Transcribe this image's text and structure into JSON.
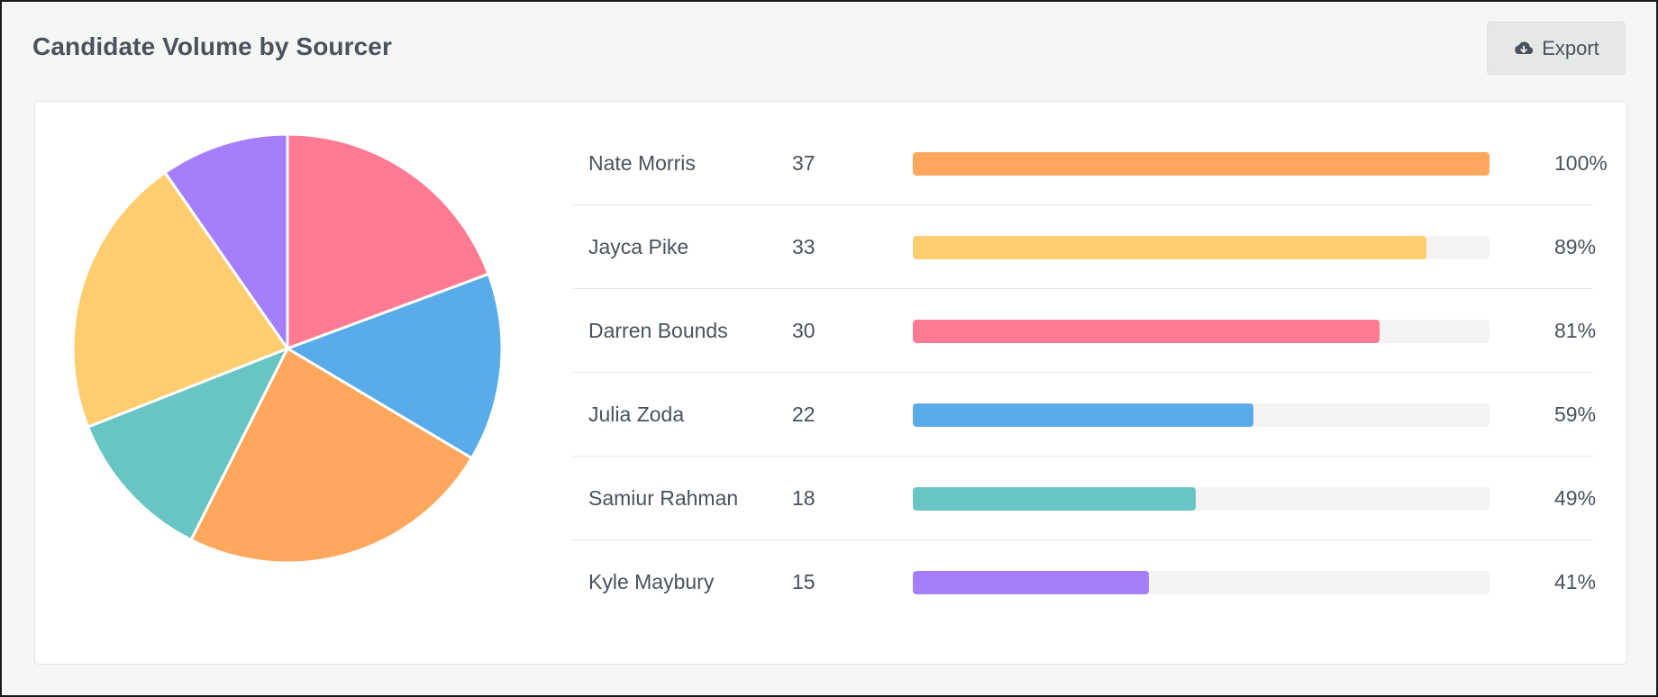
{
  "header": {
    "title": "Candidate Volume by Sourcer",
    "export_label": "Export",
    "export_icon": "cloud-download-icon"
  },
  "chart_data": {
    "type": "pie",
    "categories": [
      "Nate Morris",
      "Jayca Pike",
      "Darren Bounds",
      "Julia Zoda",
      "Samiur Rahman",
      "Kyle Maybury"
    ],
    "values": [
      37,
      33,
      30,
      22,
      18,
      15
    ],
    "percent_labels": [
      "100%",
      "89%",
      "81%",
      "59%",
      "49%",
      "41%"
    ],
    "percent_of_max": [
      100,
      89,
      81,
      59,
      49,
      41
    ],
    "colors": [
      "#FEA75D",
      "#FECD6F",
      "#FF7A92",
      "#59ABE9",
      "#69C5C4",
      "#A57FFB"
    ],
    "pie_order": [
      2,
      3,
      0,
      4,
      1,
      5
    ]
  }
}
